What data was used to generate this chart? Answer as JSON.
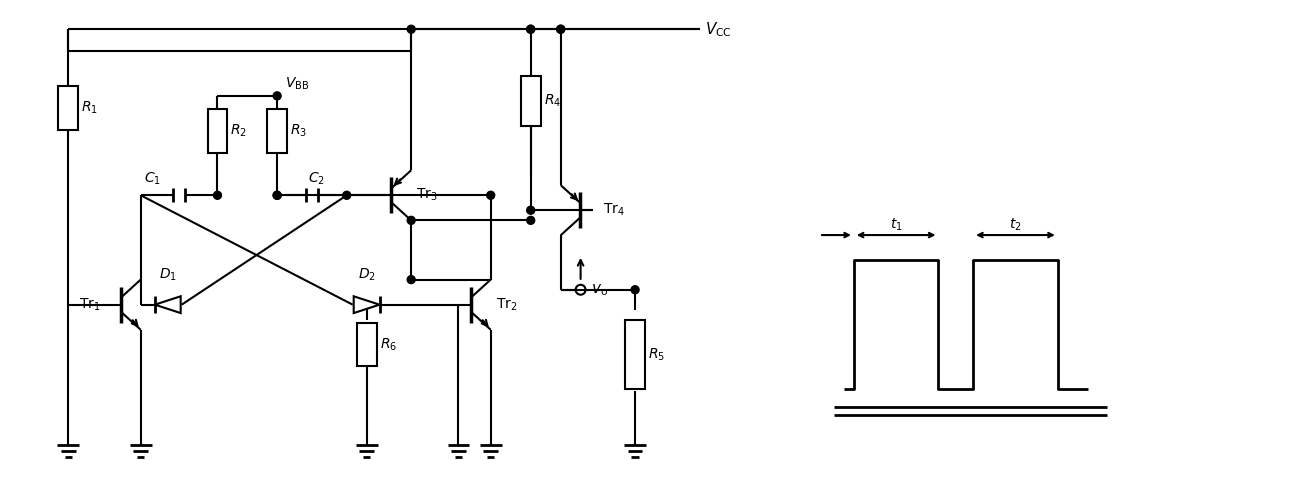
{
  "bg_color": "#ffffff",
  "line_color": "#000000",
  "lw": 1.5,
  "fig_width": 13.05,
  "fig_height": 4.93,
  "dpi": 100
}
